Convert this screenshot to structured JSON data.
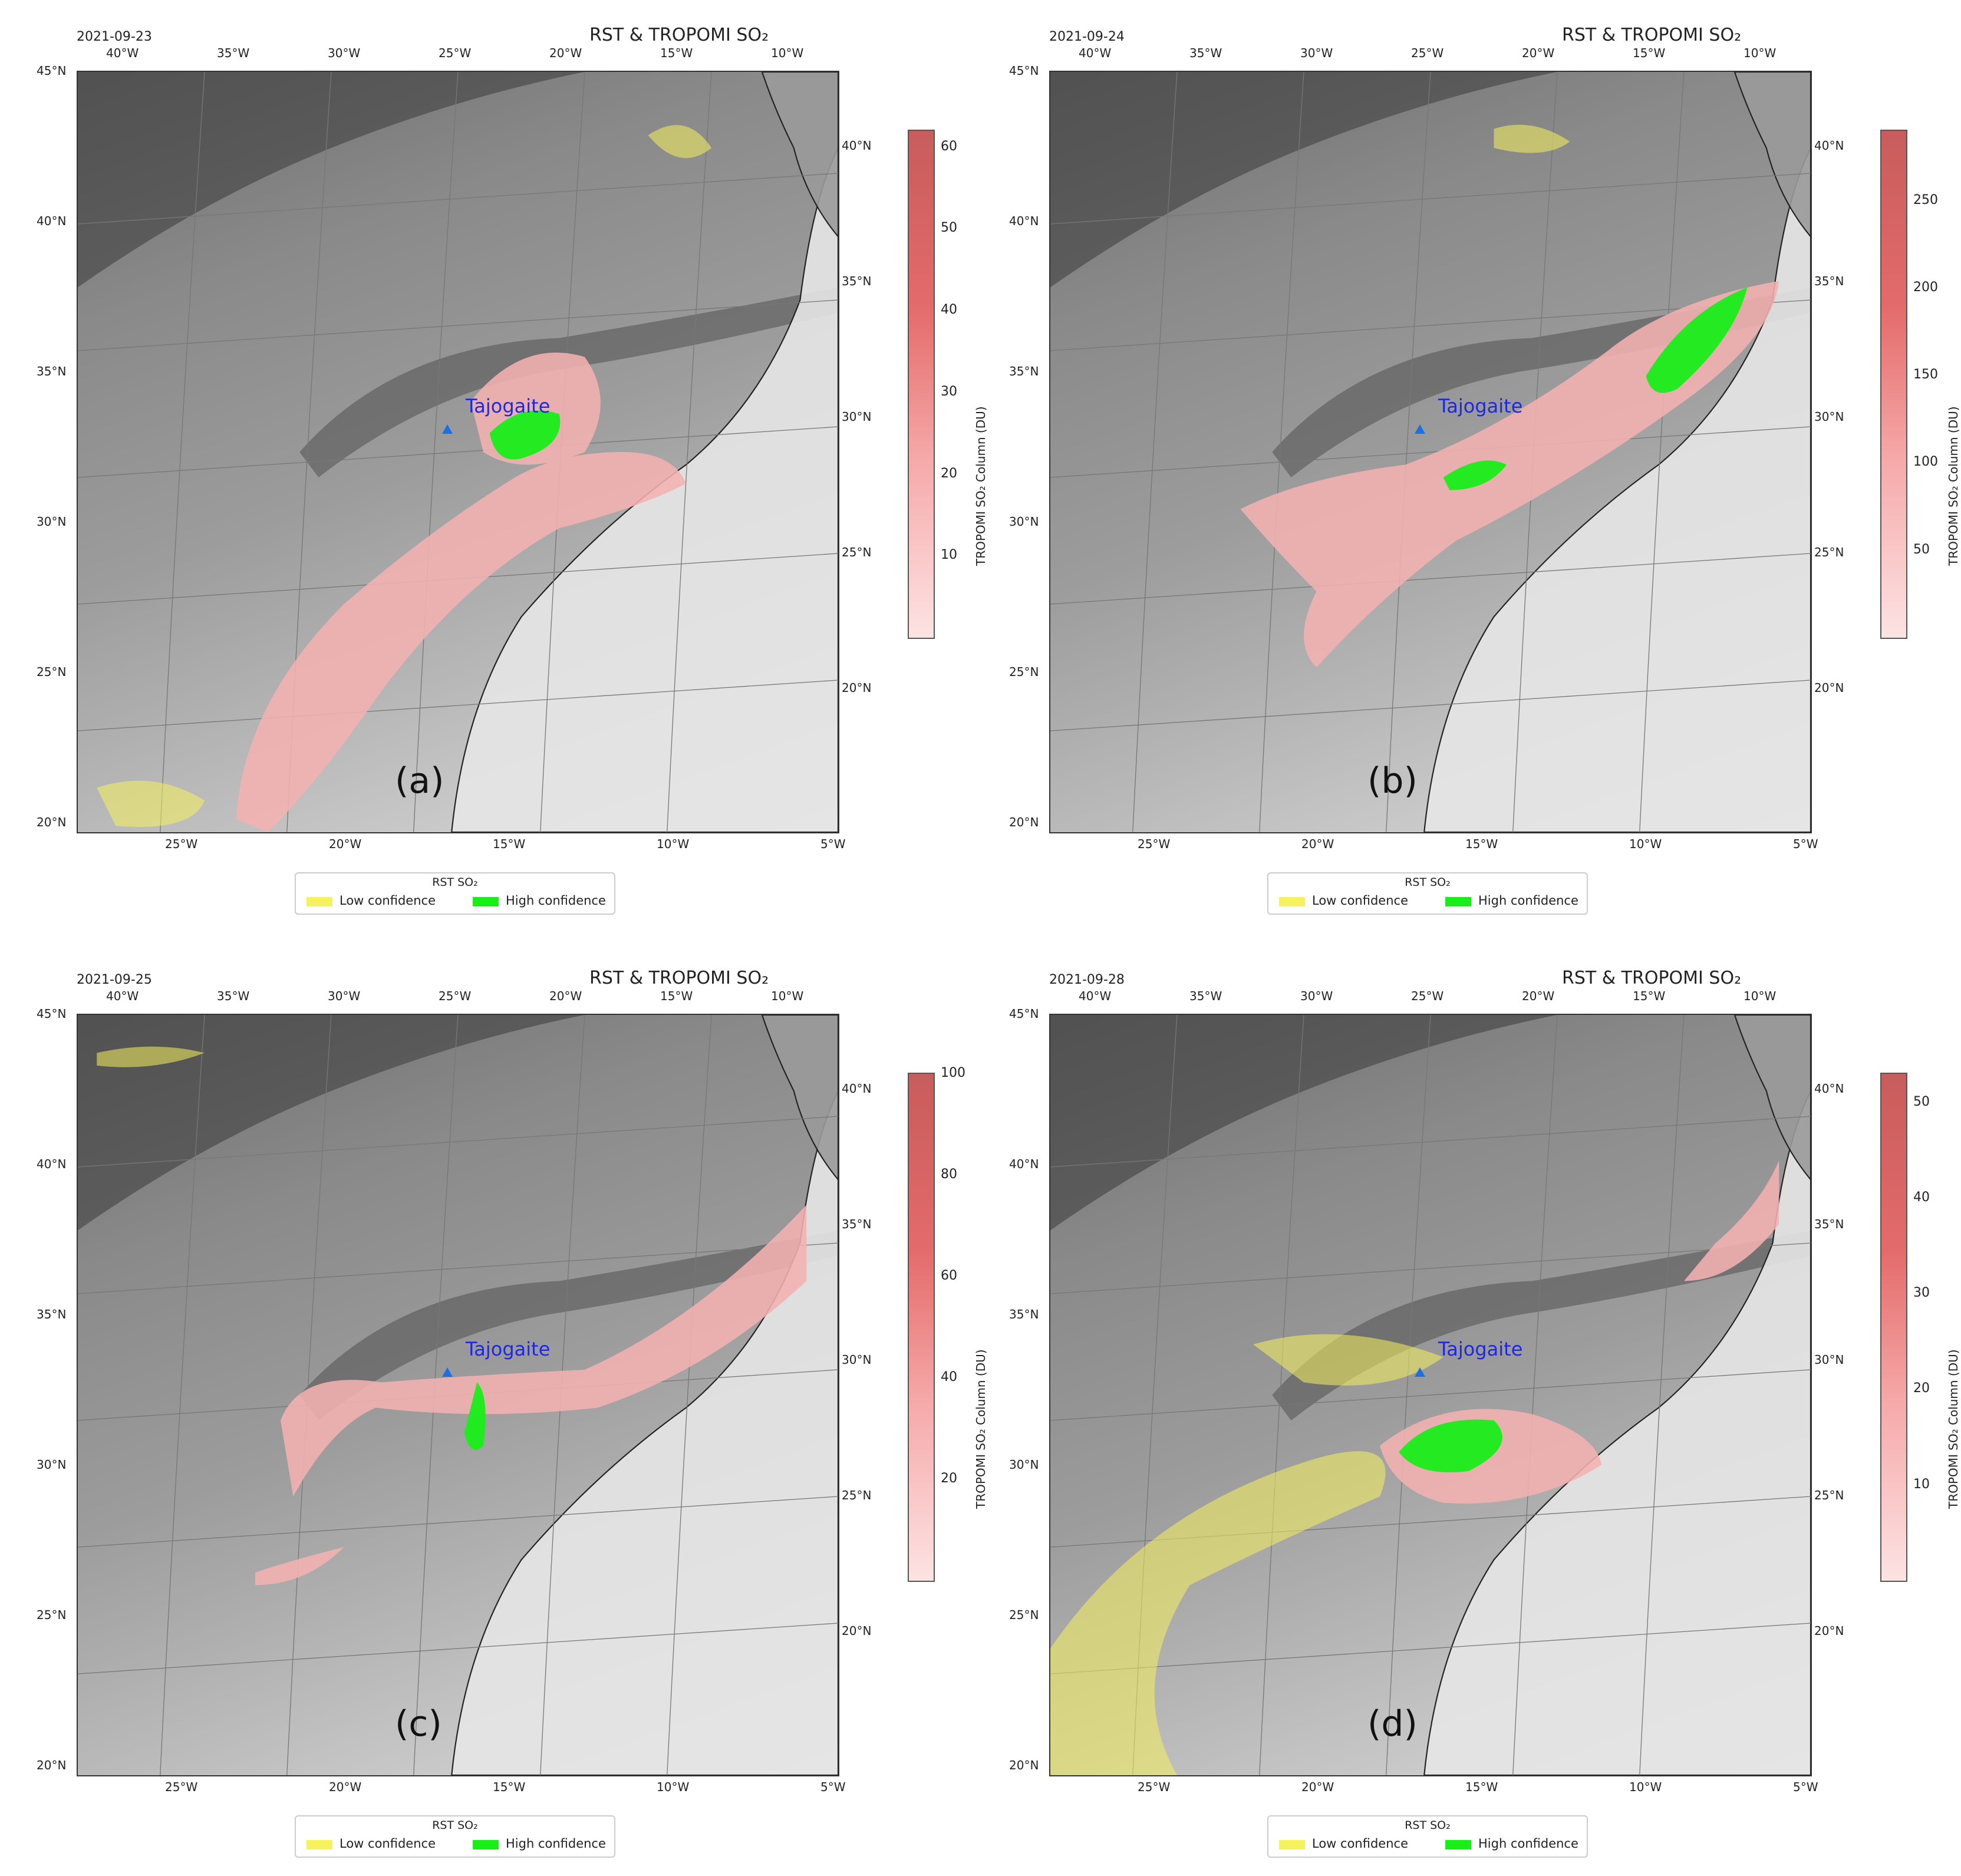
{
  "figure_title": "RST & TROPOMI SO₂",
  "colorbar_label": "TROPOMI SO₂ Column (DU)",
  "legend": {
    "title": "RST SO₂",
    "low_label": "Low confidence",
    "high_label": "High confidence",
    "low_color": "#f6f25e",
    "high_color": "#19ee19"
  },
  "volcano": "Tajogaite",
  "axes": {
    "top_lon": [
      "40°W",
      "35°W",
      "30°W",
      "25°W",
      "20°W",
      "15°W",
      "10°W"
    ],
    "bottom_lon": [
      "25°W",
      "20°W",
      "15°W",
      "10°W",
      "5°W"
    ],
    "left_lat": [
      "45°N",
      "40°N",
      "35°N",
      "30°N",
      "25°N",
      "20°N"
    ],
    "right_lat": [
      "40°N",
      "35°N",
      "30°N",
      "25°N",
      "20°N"
    ]
  },
  "panels": [
    {
      "id": "a",
      "letter": "(a)",
      "date": "2021-09-23",
      "cbar_ticks": [
        "60",
        "50",
        "40",
        "30",
        "20",
        "10"
      ],
      "cbar_max": 62
    },
    {
      "id": "b",
      "letter": "(b)",
      "date": "2021-09-24",
      "cbar_ticks": [
        "250",
        "200",
        "150",
        "100",
        "50"
      ],
      "cbar_max": 290
    },
    {
      "id": "c",
      "letter": "(c)",
      "date": "2021-09-25",
      "cbar_ticks": [
        "100",
        "80",
        "60",
        "40",
        "20"
      ],
      "cbar_max": 100
    },
    {
      "id": "d",
      "letter": "(d)",
      "date": "2021-09-28",
      "cbar_ticks": [
        "50",
        "40",
        "30",
        "20",
        "10"
      ],
      "cbar_max": 53
    }
  ]
}
